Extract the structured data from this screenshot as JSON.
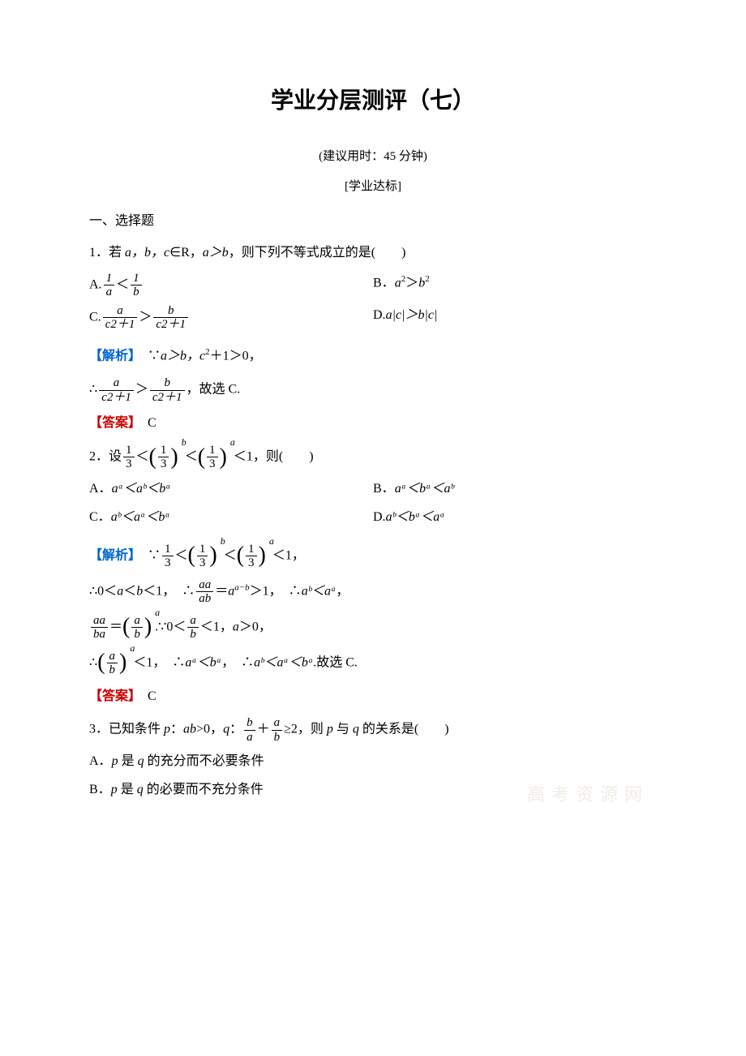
{
  "title": "学业分层测评（七）",
  "subtitle": "(建议用时：45 分钟)",
  "section_label": "[学业达标]",
  "section_header": "一、选择题",
  "q1": {
    "stem_prefix": "1．若 ",
    "stem_vars": "a，b，c",
    "stem_mid": "∈R，",
    "stem_cond": "a＞b",
    "stem_suffix": "，则下列不等式成立的是(　　)",
    "optA_prefix": "A.",
    "optA_num1": "1",
    "optA_den1": "a",
    "optA_rel": "＜",
    "optA_num2": "1",
    "optA_den2": "b",
    "optB": "B．",
    "optB_expr": "a",
    "optB_sup1": "2",
    "optB_rel": "＞",
    "optB_expr2": "b",
    "optB_sup2": "2",
    "optC_prefix": "C.",
    "optC_num1": "a",
    "optC_den1": "c2＋1",
    "optC_rel": "＞",
    "optC_num2": "b",
    "optC_den2": "c2＋1",
    "optD": "D.",
    "optD_expr": "a|c|＞b|c|",
    "analysis_label": "【解析】",
    "analysis_text1": "　∵",
    "analysis_cond": "a＞b，c",
    "analysis_sup": "2",
    "analysis_text2": "＋1＞0，",
    "analysis_line2_prefix": "∴",
    "analysis_line2_num1": "a",
    "analysis_line2_den1": "c2＋1",
    "analysis_line2_rel": "＞",
    "analysis_line2_num2": "b",
    "analysis_line2_den2": "c2＋1",
    "analysis_line2_suffix": "，故选 C.",
    "answer_label": "【答案】",
    "answer_text": "　C"
  },
  "q2": {
    "stem_prefix": "2．设",
    "frac1_num": "1",
    "frac1_den": "3",
    "lt1": "＜",
    "pfrac_num": "1",
    "pfrac_den": "3",
    "exp_b": "b",
    "lt2": "＜",
    "exp_a": "a",
    "lt3": "＜1，则(　　)",
    "optA": "A．",
    "optA_expr": "aᵃ＜aᵇ＜bᵃ",
    "optB": "B．",
    "optB_expr": "aᵃ＜bᵃ＜aᵇ",
    "optC": "C．",
    "optC_expr": "aᵇ＜aᵃ＜bᵃ",
    "optD": "D.",
    "optD_expr": "aᵇ＜bᵃ＜aᵃ",
    "analysis_label": "【解析】",
    "analysis_prefix": "　∵",
    "an_lt3": "＜1，",
    "line2_prefix": "∴0＜",
    "line2_a": "a",
    "line2_lt": "＜",
    "line2_b": "b",
    "line2_mid": "＜1，　∴",
    "line2_frac_num": "aa",
    "line2_frac_den": "ab",
    "line2_eq": "＝",
    "line2_expr": "a",
    "line2_sup": "a−b",
    "line2_gt": "＞1，　∴",
    "line2_res": "aᵇ＜aᵃ",
    "line2_comma": "，",
    "line3_frac1_num": "aa",
    "line3_frac1_den": "ba",
    "line3_eq": "＝",
    "line3_pfrac_num": "a",
    "line3_pfrac_den": "b",
    "line3_exp": "a",
    "line3_dot": ".",
    "line3_mid": "∵0＜",
    "line3_frac2_num": "a",
    "line3_frac2_den": "b",
    "line3_suffix": "＜1，",
    "line3_a": "a",
    "line3_end": "＞0，",
    "line4_prefix": "∴",
    "line4_lt": "＜1，　∴",
    "line4_res1": "aᵃ＜bᵃ",
    "line4_mid": "，　∴",
    "line4_res2": "aᵇ＜aᵃ＜bᵃ",
    "line4_suffix": ".故选 C.",
    "answer_label": "【答案】",
    "answer_text": "　C"
  },
  "q3": {
    "stem_prefix": "3．已知条件 ",
    "p": "p",
    "colon1": "：",
    "cond1": "ab",
    "gt0": ">0，",
    "q": "q",
    "colon2": "：",
    "frac1_num": "b",
    "frac1_den": "a",
    "plus": "＋",
    "frac2_num": "a",
    "frac2_den": "b",
    "ge2": "≥2，则 ",
    "p2": "p",
    "mid": " 与 ",
    "q2": "q",
    "suffix": " 的关系是(　　)",
    "optA": "A．",
    "optA_p": "p",
    "optA_mid": " 是 ",
    "optA_q": "q",
    "optA_suffix": " 的充分而不必要条件",
    "optB": "B．",
    "optB_p": "p",
    "optB_mid": " 是 ",
    "optB_q": "q",
    "optB_suffix": " 的必要而不充分条件"
  },
  "watermark": "高考资源网"
}
